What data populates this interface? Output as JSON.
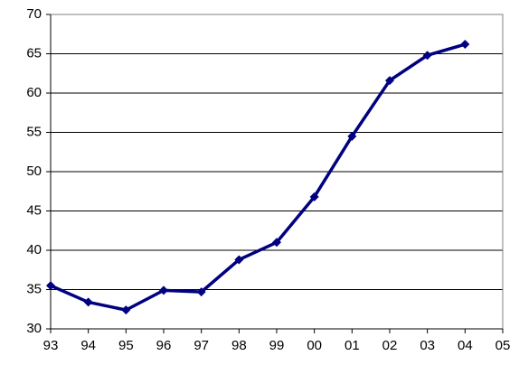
{
  "chart_data": {
    "type": "line",
    "categories": [
      "93",
      "94",
      "95",
      "96",
      "97",
      "98",
      "99",
      "00",
      "01",
      "02",
      "03",
      "04",
      "05"
    ],
    "series": [
      {
        "color": "#000080",
        "values": [
          35.5,
          33.4,
          32.4,
          34.9,
          34.7,
          38.8,
          41.0,
          46.8,
          54.5,
          61.6,
          64.8,
          66.2,
          null
        ]
      }
    ],
    "ylim": [
      30,
      70
    ],
    "yticks": [
      30,
      35,
      40,
      45,
      50,
      55,
      60,
      65,
      70
    ],
    "grid": true
  }
}
